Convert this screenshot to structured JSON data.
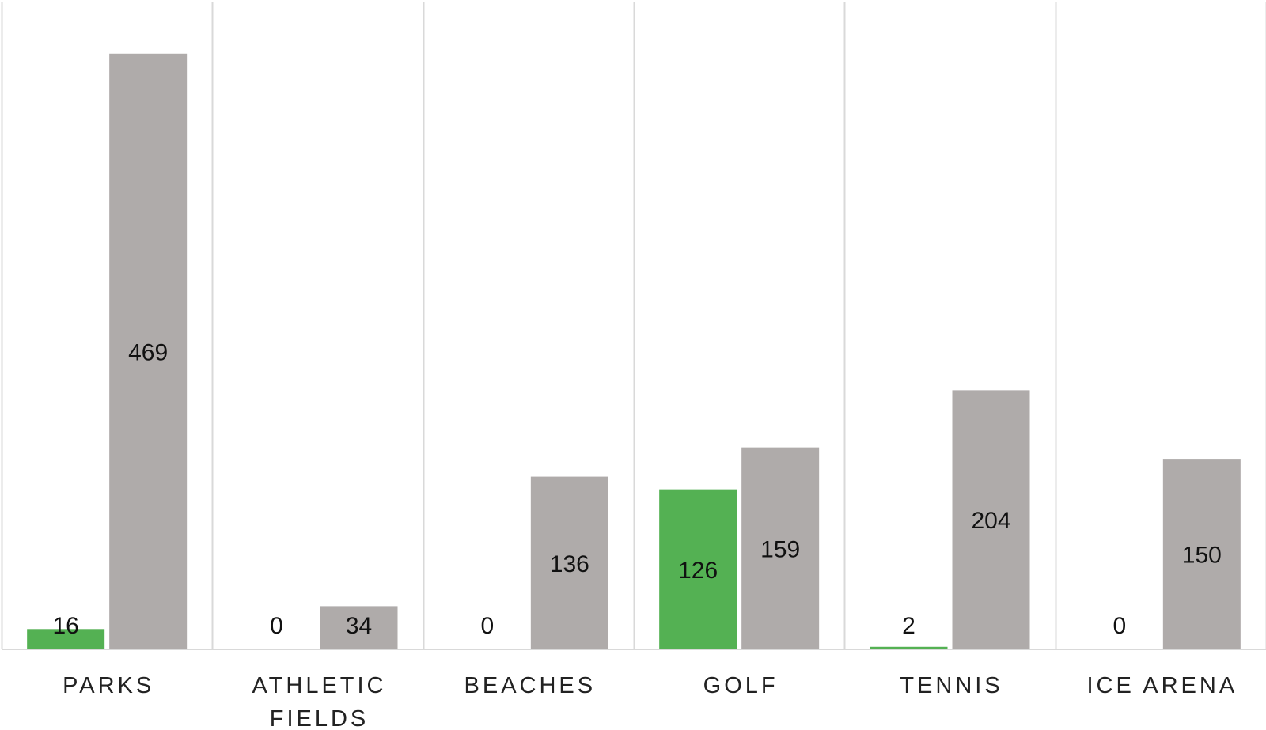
{
  "chart_data": {
    "type": "bar",
    "title": "",
    "xlabel": "",
    "ylabel": "",
    "categories": [
      [
        "PARKS"
      ],
      [
        "ATHLETIC",
        "FIELDS"
      ],
      [
        "BEACHES"
      ],
      [
        "GOLF"
      ],
      [
        "TENNIS"
      ],
      [
        "ICE ARENA"
      ]
    ],
    "series": [
      {
        "values": [
          16,
          0,
          0,
          126,
          2,
          0
        ],
        "color": "#54b153"
      },
      {
        "values": [
          469,
          34,
          136,
          159,
          204,
          150
        ],
        "color": "#afabaa"
      }
    ],
    "ylim": [
      0,
      500
    ],
    "grid": {
      "vertical_separators": true,
      "horizontal": false
    },
    "data_labels": true,
    "legend": "none"
  }
}
